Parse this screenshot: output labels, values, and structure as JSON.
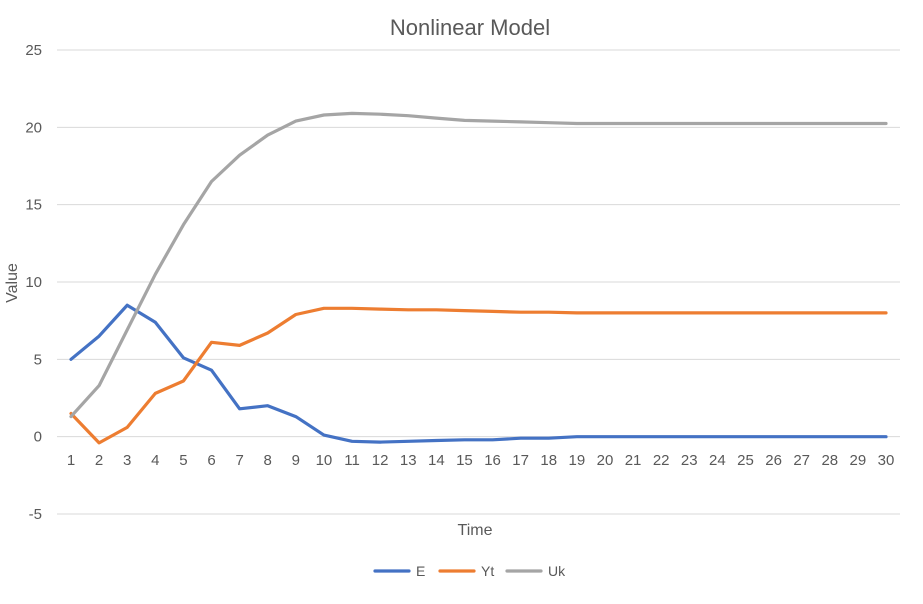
{
  "chart_data": {
    "type": "line",
    "title": "Nonlinear Model",
    "xlabel": "Time",
    "ylabel": "Value",
    "ylim": [
      -5,
      25
    ],
    "yticks": [
      -5,
      0,
      5,
      10,
      15,
      20,
      25
    ],
    "grid": true,
    "legend_position": "bottom",
    "x": [
      1,
      2,
      3,
      4,
      5,
      6,
      7,
      8,
      9,
      10,
      11,
      12,
      13,
      14,
      15,
      16,
      17,
      18,
      19,
      20,
      21,
      22,
      23,
      24,
      25,
      26,
      27,
      28,
      29,
      30
    ],
    "series": [
      {
        "name": "E",
        "color": "#4472c4",
        "values": [
          5.0,
          6.5,
          8.5,
          7.4,
          5.1,
          4.3,
          1.8,
          2.0,
          1.3,
          0.1,
          -0.3,
          -0.35,
          -0.3,
          -0.25,
          -0.2,
          -0.2,
          -0.1,
          -0.1,
          0,
          0,
          0,
          0,
          0,
          0,
          0,
          0,
          0,
          0,
          0,
          0
        ]
      },
      {
        "name": "Yt",
        "color": "#ed7d31",
        "values": [
          1.5,
          -0.4,
          0.6,
          2.8,
          3.6,
          6.1,
          5.9,
          6.7,
          7.9,
          8.3,
          8.3,
          8.25,
          8.2,
          8.2,
          8.15,
          8.1,
          8.05,
          8.05,
          8.0,
          8.0,
          8.0,
          8.0,
          8.0,
          8.0,
          8.0,
          8.0,
          8.0,
          8.0,
          8.0,
          8.0
        ]
      },
      {
        "name": "Uk",
        "color": "#a5a5a5",
        "values": [
          1.3,
          3.3,
          6.9,
          10.5,
          13.7,
          16.5,
          18.2,
          19.5,
          20.4,
          20.8,
          20.9,
          20.85,
          20.75,
          20.6,
          20.45,
          20.4,
          20.35,
          20.3,
          20.25,
          20.25,
          20.25,
          20.25,
          20.25,
          20.25,
          20.25,
          20.25,
          20.25,
          20.25,
          20.25,
          20.25
        ]
      }
    ]
  }
}
